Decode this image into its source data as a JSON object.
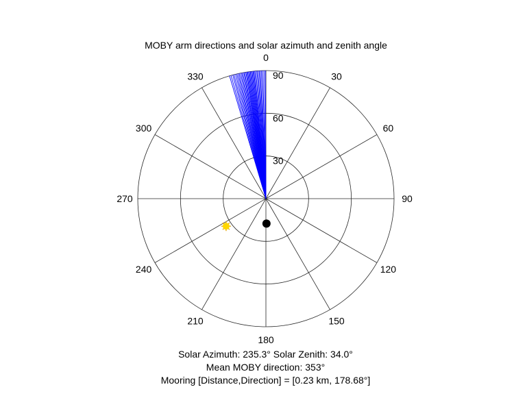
{
  "chart_data": {
    "type": "polar",
    "title": "MOBY arm directions and solar azimuth and zenith angle",
    "theta_zero": "top",
    "theta_direction": "clockwise",
    "angle_ticks": [
      0,
      30,
      60,
      90,
      120,
      150,
      180,
      210,
      240,
      270,
      300,
      330
    ],
    "angle_tick_labels": [
      "0",
      "30",
      "60",
      "90",
      "120",
      "150",
      "180",
      "210",
      "240",
      "270",
      "300",
      "330"
    ],
    "radial_ticks": [
      30,
      60,
      90
    ],
    "radial_tick_labels": [
      "30",
      "60",
      "90"
    ],
    "rlim": [
      0,
      90
    ],
    "grid": true,
    "series": [
      {
        "name": "MOBY arm directions",
        "kind": "radial_lines",
        "color": "#0000ff",
        "radius": 90,
        "angles": [
          343.5,
          344.2,
          345.0,
          345.6,
          346.3,
          346.9,
          347.5,
          348.0,
          348.6,
          349.1,
          349.6,
          350.1,
          350.5,
          351.0,
          351.4,
          351.8,
          352.2,
          352.6,
          353.0,
          353.4,
          353.8,
          354.2,
          354.6,
          355.0,
          355.5,
          356.0,
          356.5,
          357.0,
          357.5,
          358.0,
          358.6,
          359.2,
          359.8
        ]
      },
      {
        "name": "Solar position",
        "kind": "marker",
        "marker": "sun",
        "color": "#ffd700",
        "edge_color": "#e6a800",
        "angle": 235.3,
        "radius": 34.0
      },
      {
        "name": "Mooring",
        "kind": "marker",
        "marker": "circle",
        "color": "#000000",
        "angle": 178.68,
        "radius": 17.5
      }
    ]
  },
  "footer": {
    "line1": "Solar Azimuth: 235.3°    Solar Zenith: 34.0°",
    "line2": "Mean MOBY direction: 353°",
    "line3": "Mooring [Distance,Direction] = [0.23 km, 178.68°]"
  }
}
